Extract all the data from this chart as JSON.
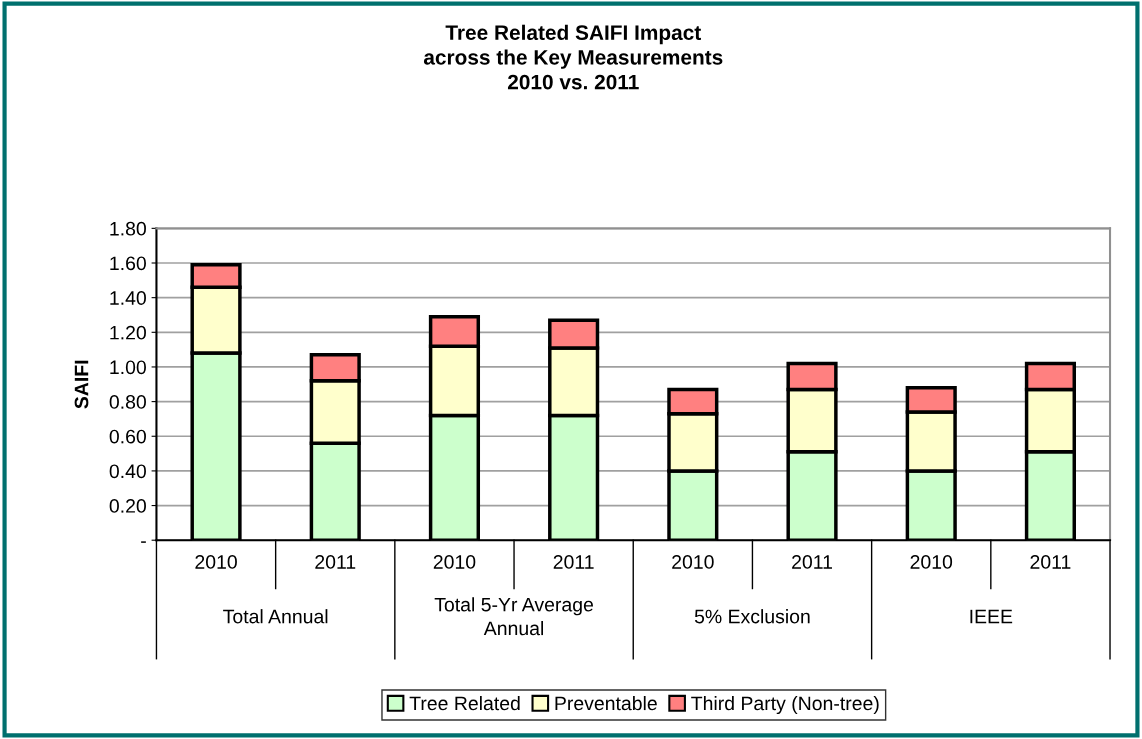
{
  "chart_data": {
    "type": "bar",
    "stacked": true,
    "title": "Tree Related SAIFI Impact\nacross the Key Measurements\n2010 vs. 2011",
    "ylabel": "SAIFI",
    "categories": [
      "2010",
      "2011",
      "2010",
      "2011",
      "2010",
      "2011",
      "2010",
      "2011"
    ],
    "annotations": [
      "Total Annual",
      "Total 5-Yr Average\nAnnual",
      "5% Exclusion",
      "IEEE"
    ],
    "series": [
      {
        "name": "Tree Related",
        "color": "#ccffcc",
        "values": [
          1.08,
          0.56,
          0.72,
          0.72,
          0.4,
          0.51,
          0.4,
          0.51
        ]
      },
      {
        "name": "Preventable",
        "color": "#ffffcc",
        "values": [
          0.38,
          0.36,
          0.4,
          0.39,
          0.33,
          0.36,
          0.34,
          0.36
        ]
      },
      {
        "name": "Third Party (Non-tree)",
        "color": "#ff8080",
        "values": [
          0.13,
          0.15,
          0.17,
          0.16,
          0.14,
          0.15,
          0.14,
          0.15
        ]
      }
    ],
    "ylim": [
      0,
      1.8
    ],
    "yticks": [
      {
        "value": 0,
        "label": "-"
      },
      {
        "value": 0.2,
        "label": "0.20"
      },
      {
        "value": 0.4,
        "label": "0.40"
      },
      {
        "value": 0.6,
        "label": "0.60"
      },
      {
        "value": 0.8,
        "label": "0.80"
      },
      {
        "value": 1.0,
        "label": "1.00"
      },
      {
        "value": 1.2,
        "label": "1.20"
      },
      {
        "value": 1.4,
        "label": "1.40"
      },
      {
        "value": 1.6,
        "label": "1.60"
      },
      {
        "value": 1.8,
        "label": "1.80"
      }
    ],
    "grid": "y",
    "legend": "bottom"
  }
}
